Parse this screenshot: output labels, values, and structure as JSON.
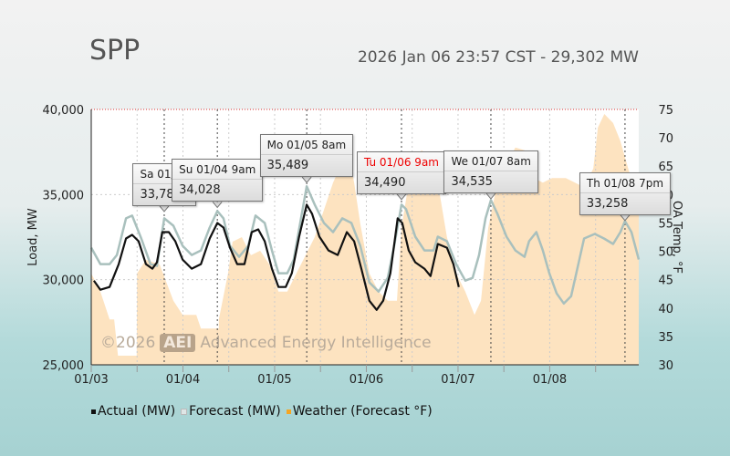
{
  "header": {
    "title": "SPP",
    "status": "2026 Jan 06 23:57 CST - 29,302 MW"
  },
  "watermark": {
    "copyright": "©2026",
    "logo": "AEI",
    "text": "Advanced Energy Intelligence"
  },
  "colors": {
    "actual": "#111111",
    "forecast": "#a9c0bd",
    "weather": "#fde3c0",
    "weather_legend": "#f5a623"
  },
  "chart_data": {
    "type": "line",
    "x_unit": "hours since 01/03 00:00",
    "xlim": [
      0,
      143.3
    ],
    "x_ticks": [
      {
        "h": 0,
        "label": "01/03"
      },
      {
        "h": 24,
        "label": "01/04"
      },
      {
        "h": 48,
        "label": "01/05"
      },
      {
        "h": 72,
        "label": "01/06"
      },
      {
        "h": 96,
        "label": "01/07"
      },
      {
        "h": 120,
        "label": "01/08"
      }
    ],
    "ylabel": "Load, MW",
    "ylim": [
      25000,
      40000
    ],
    "y_ticks": [
      "25,000",
      "30,000",
      "35,000",
      "40,000"
    ],
    "y2label": "OA Temp, °F",
    "y2lim": [
      30,
      75
    ],
    "y2_ticks": [
      "30",
      "35",
      "40",
      "45",
      "50",
      "55",
      "60",
      "65",
      "70",
      "75"
    ],
    "legend": [
      "Actual (MW)",
      "Forecast (MW)",
      "Weather (Forecast °F)"
    ],
    "forecast": [
      [
        0,
        31881
      ],
      [
        2.4,
        30914
      ],
      [
        4.8,
        30914
      ],
      [
        6.7,
        31451
      ],
      [
        9.1,
        33602
      ],
      [
        10.7,
        33763
      ],
      [
        13.1,
        32419
      ],
      [
        15.5,
        30914
      ],
      [
        17.2,
        30806
      ],
      [
        19.1,
        33602
      ],
      [
        21.5,
        33172
      ],
      [
        23.9,
        31989
      ],
      [
        26.3,
        31451
      ],
      [
        28.7,
        31720
      ],
      [
        31,
        33064
      ],
      [
        33,
        34032
      ],
      [
        34.6,
        33602
      ],
      [
        36.3,
        31989
      ],
      [
        38.7,
        31344
      ],
      [
        41.1,
        31989
      ],
      [
        43,
        33763
      ],
      [
        45.4,
        33333
      ],
      [
        47.3,
        31720
      ],
      [
        49,
        30376
      ],
      [
        51.3,
        30376
      ],
      [
        53,
        31182
      ],
      [
        54.9,
        33602
      ],
      [
        56.4,
        35483
      ],
      [
        58.5,
        34408
      ],
      [
        60.9,
        33333
      ],
      [
        63.3,
        32795
      ],
      [
        65.7,
        33602
      ],
      [
        68.1,
        33333
      ],
      [
        70.4,
        31989
      ],
      [
        72.8,
        29838
      ],
      [
        75.2,
        29301
      ],
      [
        77.6,
        30107
      ],
      [
        79.3,
        31989
      ],
      [
        81.2,
        34408
      ],
      [
        82.4,
        34139
      ],
      [
        84.8,
        32526
      ],
      [
        87.2,
        31720
      ],
      [
        89.6,
        31720
      ],
      [
        90.7,
        32526
      ],
      [
        93.1,
        32258
      ],
      [
        95.5,
        30914
      ],
      [
        97.9,
        29946
      ],
      [
        99.8,
        30107
      ],
      [
        101.5,
        31451
      ],
      [
        103.2,
        33602
      ],
      [
        104.6,
        34677
      ],
      [
        106.3,
        33870
      ],
      [
        108.7,
        32526
      ],
      [
        111,
        31720
      ],
      [
        113.4,
        31344
      ],
      [
        114.6,
        32258
      ],
      [
        116.5,
        32795
      ],
      [
        118.2,
        31720
      ],
      [
        119.9,
        30376
      ],
      [
        121.8,
        29193
      ],
      [
        123.7,
        28602
      ],
      [
        125.6,
        29032
      ],
      [
        127.5,
        30914
      ],
      [
        129,
        32419
      ],
      [
        131.8,
        32688
      ],
      [
        134.2,
        32419
      ],
      [
        136.6,
        32097
      ],
      [
        138.5,
        32795
      ],
      [
        139.7,
        33441
      ],
      [
        141.4,
        32795
      ],
      [
        143.3,
        31182
      ]
    ],
    "actual": [
      [
        0.7,
        29946
      ],
      [
        2.4,
        29408
      ],
      [
        4.8,
        29570
      ],
      [
        7.2,
        30914
      ],
      [
        9.1,
        32419
      ],
      [
        10.7,
        32634
      ],
      [
        12.4,
        32258
      ],
      [
        14.3,
        30914
      ],
      [
        16,
        30645
      ],
      [
        17.2,
        31021
      ],
      [
        18.6,
        32795
      ],
      [
        20.3,
        32795
      ],
      [
        22,
        32258
      ],
      [
        23.9,
        31182
      ],
      [
        26.3,
        30645
      ],
      [
        28.7,
        30914
      ],
      [
        31,
        32419
      ],
      [
        33,
        33333
      ],
      [
        34.6,
        33064
      ],
      [
        36.3,
        31881
      ],
      [
        38.2,
        30914
      ],
      [
        40.1,
        30914
      ],
      [
        42,
        32795
      ],
      [
        43.7,
        32956
      ],
      [
        45.4,
        32258
      ],
      [
        47.3,
        30645
      ],
      [
        49,
        29570
      ],
      [
        50.9,
        29570
      ],
      [
        52.5,
        30376
      ],
      [
        54.4,
        32526
      ],
      [
        56.4,
        34408
      ],
      [
        57.8,
        33871
      ],
      [
        59.7,
        32526
      ],
      [
        62.1,
        31720
      ],
      [
        64.5,
        31451
      ],
      [
        66.9,
        32795
      ],
      [
        68.8,
        32258
      ],
      [
        70.7,
        30645
      ],
      [
        72.8,
        28763
      ],
      [
        74.7,
        28226
      ],
      [
        76.4,
        28763
      ],
      [
        78.3,
        30376
      ],
      [
        80.2,
        33602
      ],
      [
        81.4,
        33333
      ],
      [
        83.1,
        31720
      ],
      [
        84.8,
        31021
      ],
      [
        87.2,
        30645
      ],
      [
        88.8,
        30215
      ],
      [
        90.7,
        32097
      ],
      [
        93.1,
        31881
      ],
      [
        94.8,
        30914
      ],
      [
        96.2,
        29570
      ]
    ],
    "weather": [
      [
        0,
        46.1
      ],
      [
        2.4,
        42.9
      ],
      [
        4.8,
        38
      ],
      [
        6,
        38
      ],
      [
        7,
        31.6
      ],
      [
        11.9,
        31.6
      ],
      [
        12,
        46.1
      ],
      [
        14.3,
        48.5
      ],
      [
        17.9,
        47.7
      ],
      [
        21.5,
        41.3
      ],
      [
        23.9,
        38.8
      ],
      [
        27.5,
        38.8
      ],
      [
        28.7,
        36.4
      ],
      [
        33.4,
        36.4
      ],
      [
        33.4,
        38
      ],
      [
        35.8,
        46.1
      ],
      [
        37,
        51.7
      ],
      [
        39.4,
        52.5
      ],
      [
        41.8,
        49.3
      ],
      [
        44.2,
        50.1
      ],
      [
        46.6,
        47.7
      ],
      [
        49,
        42.9
      ],
      [
        51.3,
        42.9
      ],
      [
        53.7,
        46.1
      ],
      [
        56.1,
        49.3
      ],
      [
        58.5,
        52.5
      ],
      [
        60.9,
        57.3
      ],
      [
        63.3,
        62.1
      ],
      [
        65.7,
        65.7
      ],
      [
        67.4,
        67
      ],
      [
        68.8,
        62.1
      ],
      [
        70.4,
        54.9
      ],
      [
        72.8,
        46.1
      ],
      [
        75.2,
        42.9
      ],
      [
        77.6,
        41.3
      ],
      [
        80,
        41.3
      ],
      [
        81.2,
        54.1
      ],
      [
        83.1,
        62.1
      ],
      [
        84.8,
        65.4
      ],
      [
        86.4,
        67.8
      ],
      [
        88.3,
        67
      ],
      [
        90.7,
        62.1
      ],
      [
        93.1,
        52.5
      ],
      [
        95.5,
        46.1
      ],
      [
        97.9,
        42.9
      ],
      [
        100.3,
        38.8
      ],
      [
        102,
        41.3
      ],
      [
        103.9,
        54.1
      ],
      [
        106.3,
        62.1
      ],
      [
        108.7,
        65.4
      ],
      [
        111,
        68.3
      ],
      [
        113.4,
        67.8
      ],
      [
        115.8,
        62.9
      ],
      [
        118.2,
        62.1
      ],
      [
        120.6,
        62.9
      ],
      [
        124.2,
        62.9
      ],
      [
        126.6,
        62.1
      ],
      [
        129,
        61.3
      ],
      [
        131.4,
        64.6
      ],
      [
        132.6,
        71.8
      ],
      [
        134.3,
        74.2
      ],
      [
        136.6,
        72.6
      ],
      [
        138.5,
        69.4
      ],
      [
        140.9,
        63.7
      ],
      [
        143.3,
        60.5
      ]
    ],
    "callouts": [
      {
        "h": 19.1,
        "v": 33789,
        "label": "Sa 01/03",
        "value": "33,789",
        "red": false
      },
      {
        "h": 33,
        "v": 34028,
        "label": "Su 01/04 9am",
        "value": "34,028",
        "red": false
      },
      {
        "h": 56.4,
        "v": 35489,
        "label": "Mo 01/05 8am",
        "value": "35,489",
        "red": false
      },
      {
        "h": 81.2,
        "v": 34490,
        "label": "Tu 01/06 9am",
        "value": "34,490",
        "red": true
      },
      {
        "h": 104.6,
        "v": 34535,
        "label": "We 01/07 8am",
        "value": "34,535",
        "red": false
      },
      {
        "h": 139.7,
        "v": 33258,
        "label": "Th 01/08 7pm",
        "value": "33,258",
        "red": false
      }
    ]
  }
}
